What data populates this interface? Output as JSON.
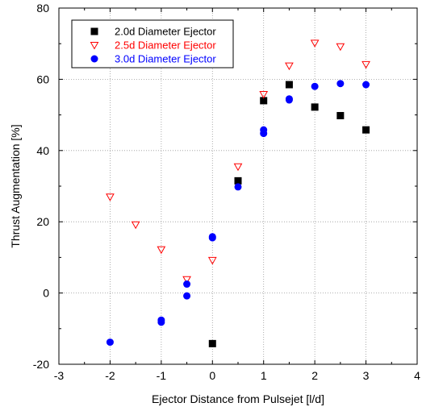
{
  "chart_data": {
    "type": "scatter",
    "title": "",
    "xlabel": "Ejector Distance from Pulsejet [l/d]",
    "ylabel": "Thrust Augmentation [%]",
    "xlim": [
      -3,
      4
    ],
    "ylim": [
      -20,
      80
    ],
    "xticks": [
      -3,
      -2,
      -1,
      0,
      1,
      2,
      3,
      4
    ],
    "yticks": [
      -20,
      0,
      20,
      40,
      60,
      80
    ],
    "xtick_labels": [
      "-3",
      "-2",
      "-1",
      "0",
      "1",
      "2",
      "3",
      "4"
    ],
    "ytick_labels": [
      "-20",
      "0",
      "20",
      "40",
      "60",
      "80"
    ],
    "grid": "dotted",
    "legend": "top-left",
    "series": [
      {
        "name": "2.0d Diameter Ejector",
        "marker": "square",
        "color": "#000000",
        "x": [
          0,
          0.5,
          1,
          1.5,
          2,
          2.5,
          3
        ],
        "y": [
          -14.2,
          31.5,
          54,
          58.5,
          52.2,
          49.8,
          45.8
        ]
      },
      {
        "name": "2.5d Diameter Ejector",
        "marker": "triangle-down-open",
        "color": "#ff0000",
        "x": [
          -2,
          -1.5,
          -1,
          -0.5,
          0,
          0.5,
          1,
          1.5,
          2,
          2.5,
          3
        ],
        "y": [
          27,
          19.2,
          12.2,
          3.8,
          9.2,
          35.5,
          55.8,
          63.8,
          70.2,
          69.2,
          64.2
        ]
      },
      {
        "name": "3.0d Diameter Ejector",
        "marker": "circle",
        "color": "#0000ff",
        "x": [
          -2,
          -1,
          -1,
          -0.5,
          -0.5,
          0,
          0,
          0.5,
          1,
          1,
          1.5,
          1.5,
          2,
          2.5,
          3
        ],
        "y": [
          -13.8,
          -7.6,
          -8.2,
          2.5,
          -0.8,
          15.8,
          15.5,
          29.8,
          45.8,
          44.8,
          54.2,
          54.5,
          58,
          58.8,
          58.5
        ]
      }
    ]
  }
}
